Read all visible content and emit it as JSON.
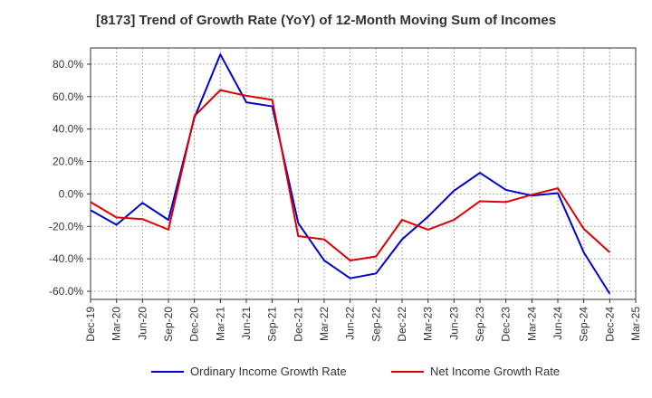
{
  "chart_data": {
    "type": "line",
    "title": "[8173]  Trend of Growth Rate (YoY) of 12-Month Moving Sum of Incomes",
    "xlabel": "",
    "ylabel": "",
    "ylim": [
      -65,
      90
    ],
    "y_ticks": [
      80,
      60,
      40,
      20,
      0,
      -20,
      -40,
      -60
    ],
    "y_tick_labels": [
      "80.0%",
      "60.0%",
      "40.0%",
      "20.0%",
      "0.0%",
      "-20.0%",
      "-40.0%",
      "-60.0%"
    ],
    "x_tick_labels": [
      "Dec-19",
      "Mar-20",
      "Jun-20",
      "Sep-20",
      "Dec-20",
      "Mar-21",
      "Jun-21",
      "Sep-21",
      "Dec-21",
      "Mar-22",
      "Jun-22",
      "Sep-22",
      "Dec-22",
      "Mar-23",
      "Jun-23",
      "Sep-23",
      "Dec-23",
      "Mar-24",
      "Jun-24",
      "Sep-24",
      "Dec-24",
      "Mar-25"
    ],
    "grid": true,
    "legend_position": "bottom",
    "series": [
      {
        "name": "Ordinary Income Growth Rate",
        "color": "#0000cc",
        "values": [
          -10,
          -19,
          -5.5,
          -16,
          47,
          86,
          56.5,
          54,
          -18,
          -41,
          -52,
          -49,
          -28,
          -14,
          2,
          13,
          2.5,
          -1,
          0.5,
          -36,
          -61.5,
          null
        ]
      },
      {
        "name": "Net Income Growth Rate",
        "color": "#dd0000",
        "values": [
          -5,
          -14.5,
          -15.5,
          -22,
          48,
          64,
          60.5,
          58,
          -26,
          -28,
          -41,
          -38.5,
          -16,
          -22,
          -16,
          -4.5,
          -5,
          -0.5,
          3.5,
          -21.5,
          -36,
          null
        ]
      }
    ]
  }
}
